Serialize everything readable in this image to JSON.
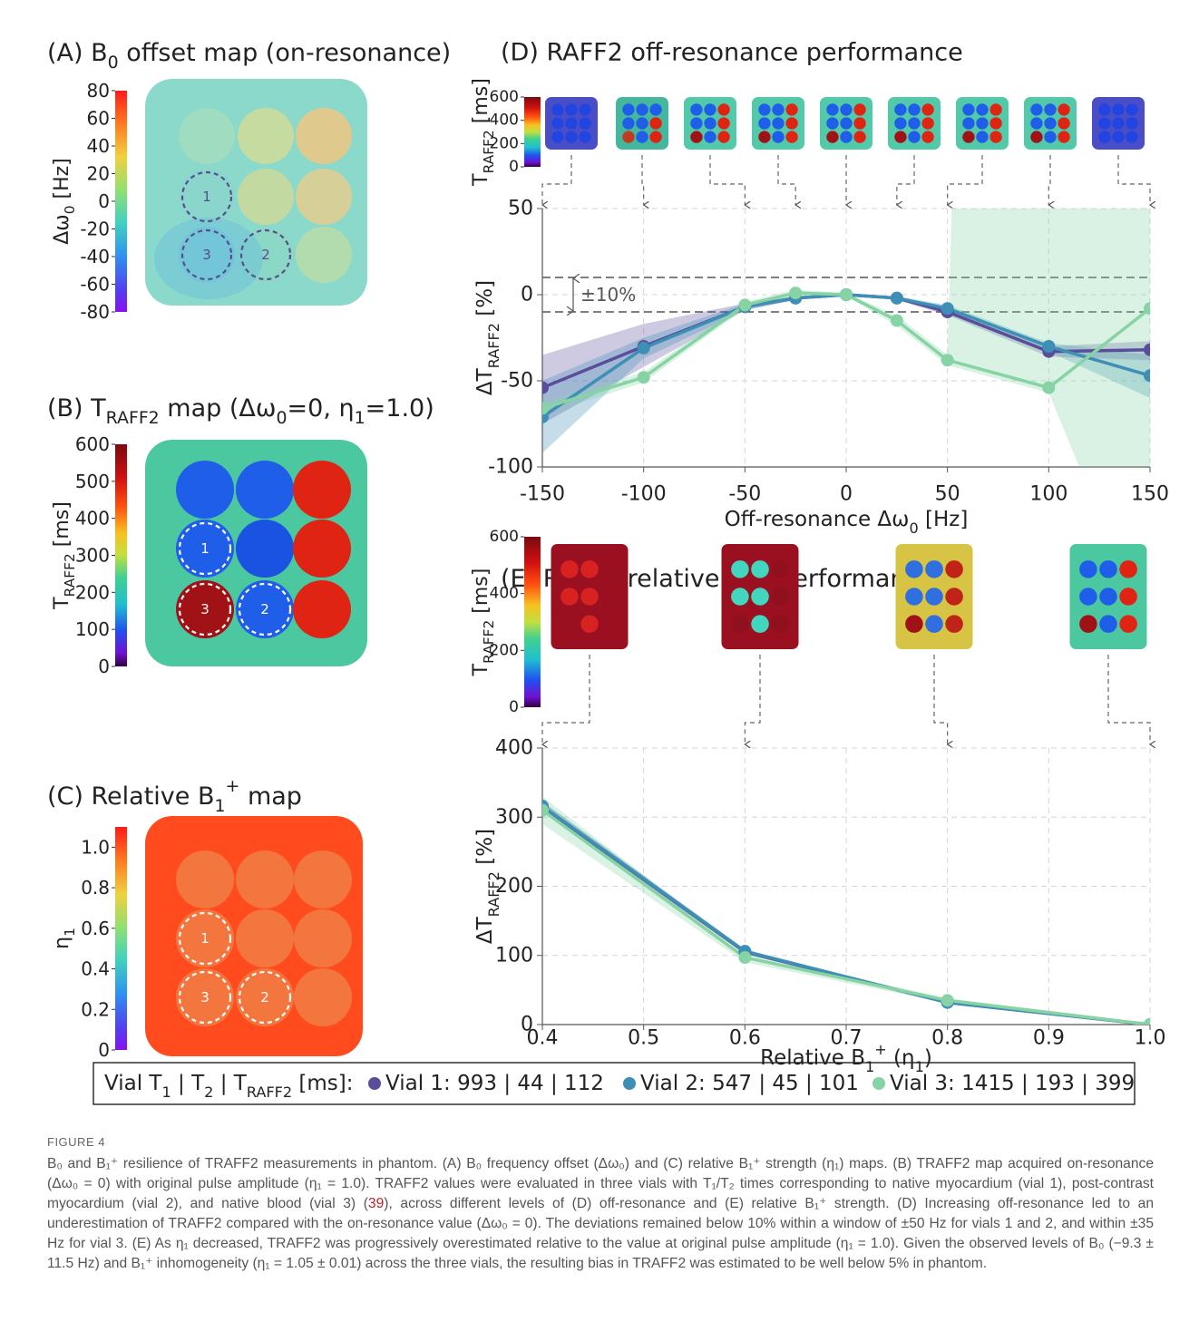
{
  "maps": [
    {
      "title": [
        "(A) B",
        "0",
        " offset map (on-resonance)"
      ],
      "colorbar": {
        "label": [
          "Δω",
          "0",
          " [Hz]"
        ],
        "lim": [
          -80,
          80
        ],
        "ticks": [
          80,
          60,
          40,
          20,
          0,
          -20,
          -40,
          -60,
          -80
        ]
      },
      "vials": [
        "1",
        "2",
        "3"
      ]
    },
    {
      "title": [
        "(B) T",
        "RAFF2",
        " map (Δω",
        "0",
        "=0, η",
        "1",
        "=1.0)"
      ],
      "colorbar": {
        "label": [
          "T",
          "RAFF2",
          " [ms]"
        ],
        "lim": [
          0,
          600
        ],
        "ticks": [
          600,
          500,
          400,
          300,
          200,
          100,
          0
        ]
      },
      "vials": [
        "1",
        "2",
        "3"
      ]
    },
    {
      "title": [
        "(C) Relative B",
        "1",
        "+",
        " map"
      ],
      "colorbar": {
        "label": [
          "η",
          "1"
        ],
        "lim": [
          0,
          1.1
        ],
        "ticks": [
          {
            "value": 1,
            "label": "1.0"
          },
          0.8,
          0.6,
          0.4,
          0.2,
          0
        ]
      },
      "vials": [
        "1",
        "2",
        "3"
      ]
    }
  ],
  "chart_data": [
    {
      "type": "line",
      "title": "(D) RAFF2 off-resonance performance",
      "xlabel": [
        "Off-resonance Δω",
        "0",
        " [Hz]"
      ],
      "ylabel": [
        "ΔT",
        "RAFF2",
        " [%]"
      ],
      "x": [
        -150,
        -100,
        -50,
        -25,
        0,
        25,
        50,
        100,
        150
      ],
      "xlim": [
        -150,
        150
      ],
      "xticks": [
        -150,
        -100,
        -50,
        0,
        50,
        100,
        150
      ],
      "ylim": [
        -100,
        50
      ],
      "yticks": [
        -100,
        -50,
        0,
        50
      ],
      "grid": true,
      "hlines": [
        10,
        -10
      ],
      "annotation": "±10%",
      "colorbar": {
        "label": [
          "T",
          "RAFF2",
          " [ms]"
        ],
        "lim": [
          0,
          600
        ],
        "ticks": [
          600,
          400,
          200,
          0
        ]
      },
      "series": [
        {
          "name": "Vial 1: 993 | 44 | 112",
          "color": "#5a4e9c",
          "values": [
            -54,
            -30,
            -7,
            -2,
            0,
            -2,
            -10,
            -33,
            -32
          ],
          "upper": [
            -35,
            -17,
            -5,
            -1,
            0,
            -1,
            -8,
            -30,
            -27
          ],
          "lower": [
            -75,
            -42,
            -9,
            -3,
            0,
            -3,
            -12,
            -36,
            -38
          ]
        },
        {
          "name": "Vial 2: 547 | 45 | 101",
          "color": "#3d8fb5",
          "values": [
            -71,
            -31,
            -7,
            -2,
            0,
            -2,
            -8,
            -30,
            -47
          ],
          "upper": [
            -50,
            -25,
            -5,
            -1,
            0,
            -1,
            -6,
            -28,
            -35
          ],
          "lower": [
            -92,
            -37,
            -9,
            -3,
            0,
            -3,
            -10,
            -33,
            -60
          ]
        },
        {
          "name": "Vial 3: 1415 | 193 | 399",
          "color": "#86d3a4",
          "values": [
            -66,
            -48,
            -6,
            1,
            0,
            -15,
            -38,
            -54,
            -8
          ],
          "upper": [
            -62,
            -45,
            -4,
            3,
            1,
            -12,
            -35,
            2000,
            2000
          ],
          "lower": [
            -70,
            -51,
            -8,
            -1,
            -1,
            -18,
            -41,
            -57,
            -200
          ]
        }
      ]
    },
    {
      "type": "line",
      "title": [
        "(E) RAFF2 relative B",
        "1",
        "+",
        " performance"
      ],
      "xlabel": [
        "Relative B",
        "1",
        "+",
        " (η",
        "1",
        ")"
      ],
      "ylabel": [
        "ΔT",
        "RAFF2",
        " [%]"
      ],
      "x": [
        0.4,
        0.6,
        0.8,
        1
      ],
      "xlim": [
        0.4,
        1
      ],
      "xticks": [
        0.4,
        0.5,
        0.6,
        0.7,
        0.8,
        0.9,
        {
          "value": 1,
          "label": "1.0"
        }
      ],
      "ylim": [
        0,
        400
      ],
      "yticks": [
        0,
        100,
        200,
        300,
        400
      ],
      "grid": true,
      "colorbar": {
        "label": [
          "T",
          "RAFF2",
          " [ms]"
        ],
        "lim": [
          0,
          600
        ],
        "ticks": [
          600,
          400,
          200,
          0
        ]
      },
      "series": [
        {
          "color": "#5a4e9c",
          "values": [
            315,
            105,
            32,
            0
          ],
          "upper": [
            322,
            108,
            34,
            1
          ],
          "lower": [
            308,
            102,
            30,
            -1
          ]
        },
        {
          "color": "#3d8fb5",
          "values": [
            316,
            106,
            32,
            0
          ],
          "upper": [
            323,
            109,
            34,
            1
          ],
          "lower": [
            309,
            103,
            30,
            -1
          ]
        },
        {
          "color": "#86d3a4",
          "values": [
            310,
            97,
            35,
            0
          ],
          "upper": [
            330,
            103,
            38,
            1
          ],
          "lower": [
            290,
            90,
            31,
            -1
          ]
        }
      ]
    }
  ],
  "legend": {
    "title": [
      "Vial T",
      "1",
      " | T",
      "2",
      " | T",
      "RAFF2",
      " [ms]:"
    ]
  },
  "figure_label": "FIGURE 4",
  "caption": [
    "B₀ and B₁⁺ resilience of TRAFF2 measurements in phantom. (A) B₀ frequency offset (Δω₀) and (C) relative B₁⁺ strength (η₁) maps. (B) TRAFF2 map acquired on-resonance (Δω₀ = 0) with original pulse amplitude (η₁ = 1.0). TRAFF2 values were evaluated in three vials with T₁/T₂ times corresponding to native myocardium (vial 1), post-contrast myocardium (vial 2), and native blood (vial 3) (",
    "39",
    "), across different levels of (D) off-resonance and (E) relative B₁⁺ strength. (D) Increasing off-resonance led to an underestimation of TRAFF2 compared with the on-resonance value (Δω₀ = 0). The deviations remained below 10% within a window of ±50 Hz for vials 1 and 2, and within ±35 Hz for vial 3. (E) As η₁ decreased, TRAFF2 was progressively overestimated relative to the value at original pulse amplitude (η₁ = 1.0). Given the observed levels of B₀ (−9.3 ± 11.5 Hz) and B₁⁺ inhomogeneity (η₁ = 1.05 ± 0.01) across the three vials, the resulting bias in TRAFF2 was estimated to be well below 5% in phantom."
  ]
}
